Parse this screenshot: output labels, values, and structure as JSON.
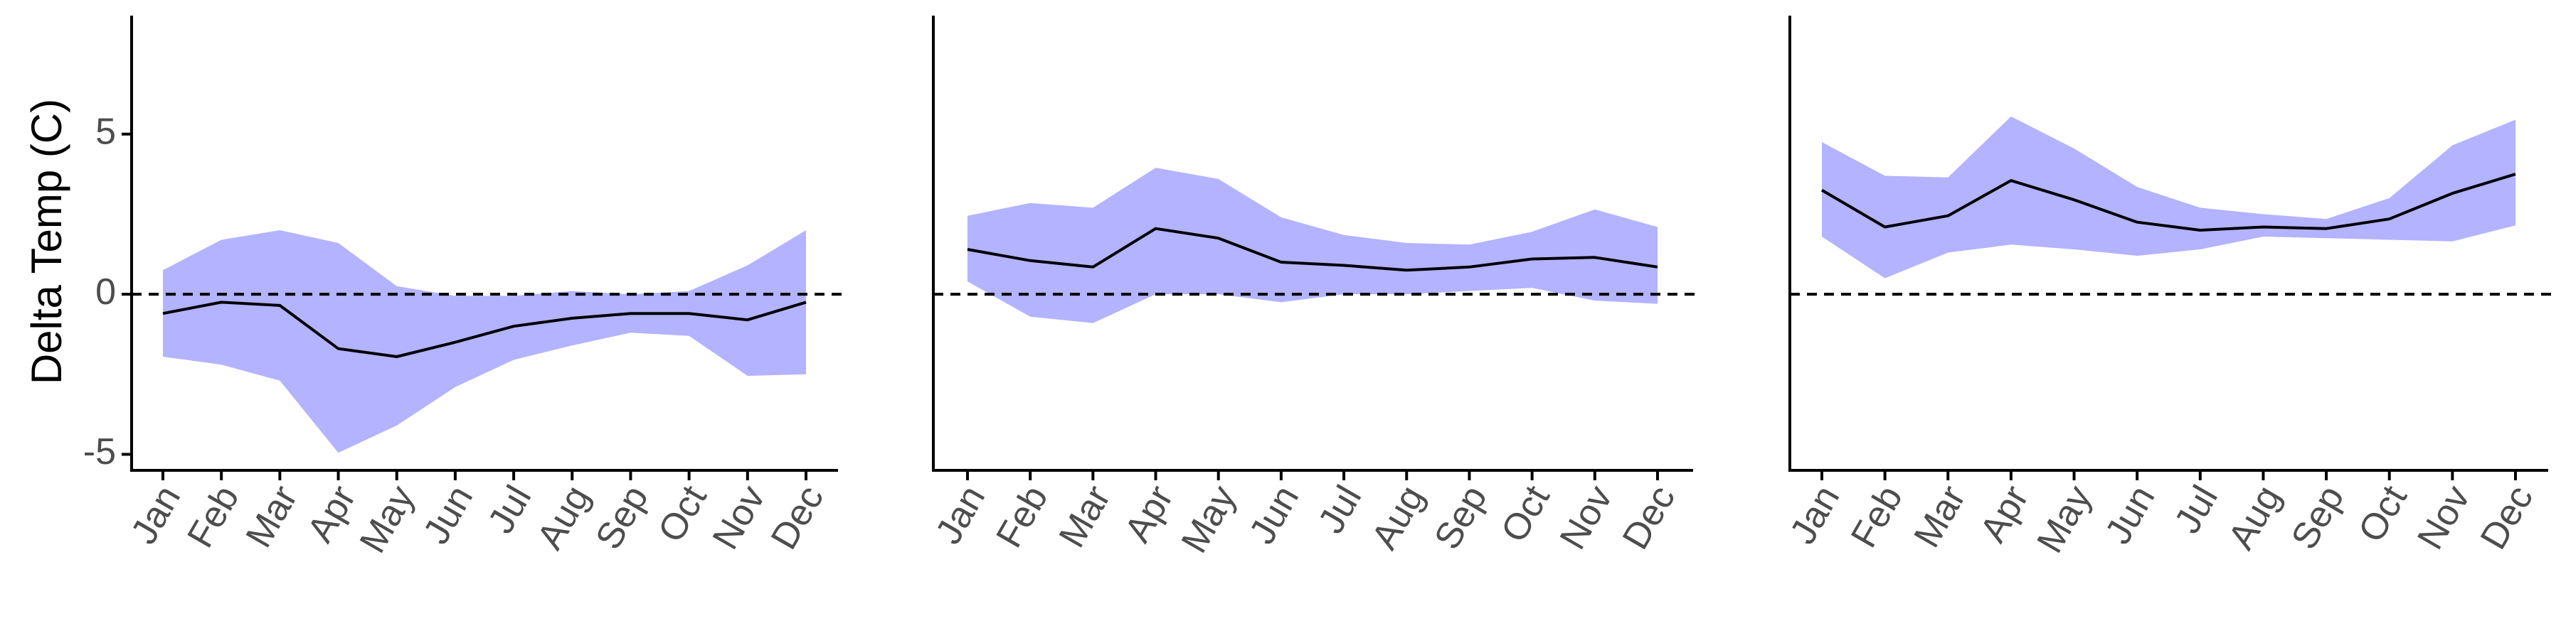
{
  "ylabel": "Delta Temp (C)",
  "colors": {
    "band": "#b3b3ff",
    "line": "#000000",
    "axis": "#000000",
    "zero": "#000000",
    "tick_text": "#4d4d4d"
  },
  "chart_data": [
    {
      "type": "line",
      "categories": [
        "Jan",
        "Feb",
        "Mar",
        "Apr",
        "May",
        "Jun",
        "Jul",
        "Aug",
        "Sep",
        "Oct",
        "Nov",
        "Dec"
      ],
      "series": [
        {
          "values": [
            -0.6,
            -0.25,
            -0.35,
            -1.7,
            -1.95,
            -1.5,
            -1.0,
            -0.75,
            -0.6,
            -0.6,
            -0.8,
            -0.25
          ]
        }
      ],
      "band": {
        "upper": [
          0.75,
          1.7,
          2.0,
          1.6,
          0.25,
          -0.05,
          -0.05,
          0.1,
          0.0,
          0.1,
          0.9,
          2.0
        ],
        "lower": [
          -1.95,
          -2.2,
          -2.7,
          -4.95,
          -4.1,
          -2.9,
          -2.05,
          -1.6,
          -1.2,
          -1.3,
          -2.55,
          -2.5
        ]
      },
      "ylim": [
        -5.5,
        8.7
      ],
      "yticks": [
        -5,
        0,
        5
      ],
      "reference_line": 0,
      "show_y_ticks": true
    },
    {
      "type": "line",
      "categories": [
        "Jan",
        "Feb",
        "Mar",
        "Apr",
        "May",
        "Jun",
        "Jul",
        "Aug",
        "Sep",
        "Oct",
        "Nov",
        "Dec"
      ],
      "series": [
        {
          "values": [
            1.4,
            1.05,
            0.85,
            2.05,
            1.75,
            1.0,
            0.9,
            0.75,
            0.85,
            1.1,
            1.15,
            0.85
          ]
        }
      ],
      "band": {
        "upper": [
          2.45,
          2.85,
          2.7,
          3.95,
          3.6,
          2.4,
          1.85,
          1.6,
          1.55,
          1.95,
          2.65,
          2.1
        ],
        "lower": [
          0.4,
          -0.7,
          -0.9,
          0.0,
          0.0,
          -0.25,
          0.0,
          0.0,
          0.1,
          0.2,
          -0.2,
          -0.3
        ]
      },
      "ylim": [
        -5.5,
        8.7
      ],
      "reference_line": 0,
      "show_y_ticks": false
    },
    {
      "type": "line",
      "categories": [
        "Jan",
        "Feb",
        "Mar",
        "Apr",
        "May",
        "Jun",
        "Jul",
        "Aug",
        "Sep",
        "Oct",
        "Nov",
        "Dec"
      ],
      "series": [
        {
          "values": [
            3.25,
            2.1,
            2.45,
            3.55,
            2.95,
            2.25,
            2.0,
            2.1,
            2.05,
            2.35,
            3.15,
            3.75
          ]
        }
      ],
      "band": {
        "upper": [
          4.75,
          3.7,
          3.65,
          5.55,
          4.55,
          3.35,
          2.7,
          2.5,
          2.35,
          3.0,
          4.65,
          5.45
        ],
        "lower": [
          1.8,
          0.5,
          1.3,
          1.55,
          1.4,
          1.2,
          1.4,
          1.8,
          1.75,
          1.7,
          1.65,
          2.15
        ]
      },
      "ylim": [
        -5.5,
        8.7
      ],
      "reference_line": 0,
      "show_y_ticks": false
    }
  ]
}
